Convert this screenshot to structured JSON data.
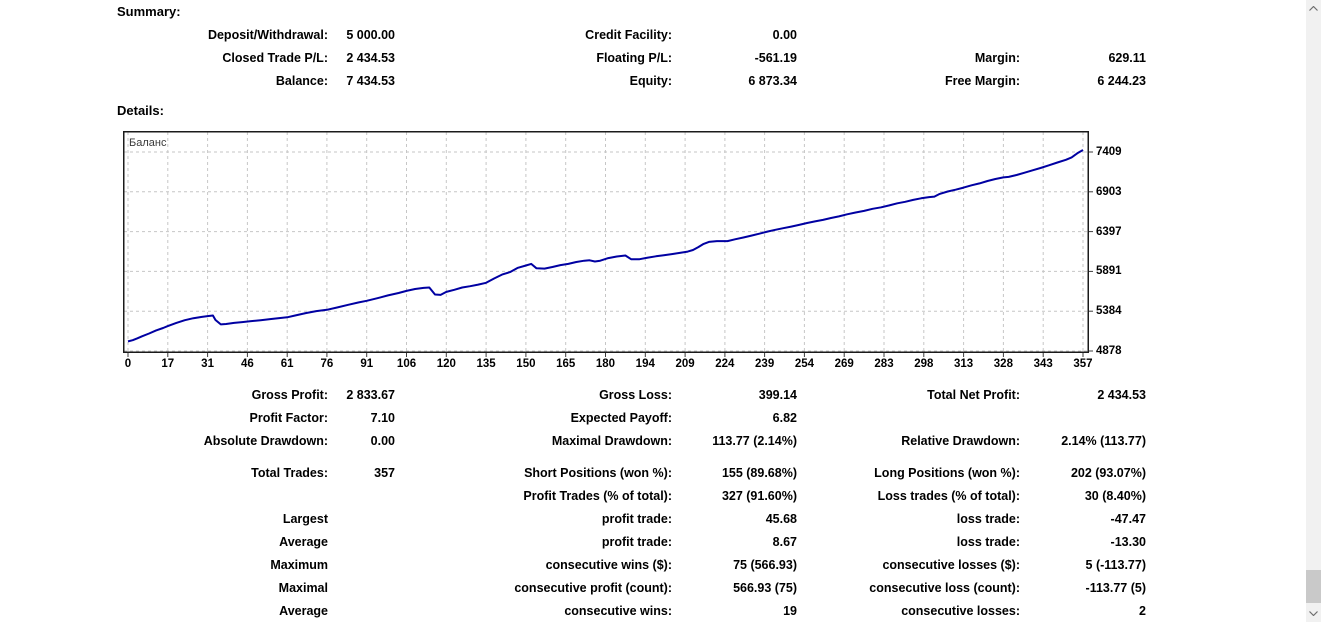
{
  "summary": {
    "heading": "Summary:",
    "rows": [
      [
        "Deposit/Withdrawal:",
        "5 000.00",
        "Credit Facility:",
        "0.00",
        "",
        ""
      ],
      [
        "Closed Trade P/L:",
        "2 434.53",
        "Floating P/L:",
        "-561.19",
        "Margin:",
        "629.11"
      ],
      [
        "Balance:",
        "7 434.53",
        "Equity:",
        "6 873.34",
        "Free Margin:",
        "6 244.23"
      ]
    ]
  },
  "details_heading": "Details:",
  "chart_data": {
    "type": "line",
    "series_label": "Баланс",
    "line_color": "#0000a2",
    "grid": true,
    "x_ticks": [
      0,
      17,
      31,
      46,
      61,
      76,
      91,
      106,
      120,
      135,
      150,
      165,
      180,
      194,
      209,
      224,
      239,
      254,
      269,
      283,
      298,
      313,
      328,
      343,
      357
    ],
    "y_ticks": [
      4878,
      5384,
      5891,
      6397,
      6903,
      7409
    ],
    "x_range": [
      0,
      357
    ],
    "y_range": [
      4840,
      7700
    ],
    "points": [
      [
        0,
        5000
      ],
      [
        2,
        5015
      ],
      [
        4,
        5040
      ],
      [
        6,
        5065
      ],
      [
        9,
        5100
      ],
      [
        12,
        5140
      ],
      [
        15,
        5170
      ],
      [
        17,
        5195
      ],
      [
        20,
        5235
      ],
      [
        23,
        5270
      ],
      [
        26,
        5295
      ],
      [
        29,
        5312
      ],
      [
        31,
        5322
      ],
      [
        33,
        5330
      ],
      [
        34,
        5272
      ],
      [
        36,
        5216
      ],
      [
        38,
        5222
      ],
      [
        41,
        5235
      ],
      [
        44,
        5246
      ],
      [
        47,
        5256
      ],
      [
        51,
        5270
      ],
      [
        55,
        5285
      ],
      [
        58,
        5296
      ],
      [
        61,
        5306
      ],
      [
        64,
        5330
      ],
      [
        68,
        5360
      ],
      [
        72,
        5386
      ],
      [
        76,
        5402
      ],
      [
        80,
        5432
      ],
      [
        84,
        5465
      ],
      [
        88,
        5496
      ],
      [
        91,
        5516
      ],
      [
        95,
        5550
      ],
      [
        99,
        5585
      ],
      [
        103,
        5616
      ],
      [
        106,
        5642
      ],
      [
        109,
        5666
      ],
      [
        112,
        5680
      ],
      [
        114,
        5686
      ],
      [
        116,
        5596
      ],
      [
        118,
        5592
      ],
      [
        120,
        5630
      ],
      [
        123,
        5656
      ],
      [
        126,
        5686
      ],
      [
        129,
        5702
      ],
      [
        132,
        5722
      ],
      [
        135,
        5746
      ],
      [
        138,
        5800
      ],
      [
        141,
        5850
      ],
      [
        144,
        5882
      ],
      [
        147,
        5936
      ],
      [
        150,
        5966
      ],
      [
        152,
        5986
      ],
      [
        154,
        5930
      ],
      [
        157,
        5926
      ],
      [
        160,
        5946
      ],
      [
        163,
        5970
      ],
      [
        166,
        5986
      ],
      [
        169,
        6010
      ],
      [
        172,
        6026
      ],
      [
        174,
        6032
      ],
      [
        176,
        6016
      ],
      [
        178,
        6026
      ],
      [
        181,
        6060
      ],
      [
        184,
        6080
      ],
      [
        187,
        6092
      ],
      [
        189,
        6046
      ],
      [
        192,
        6046
      ],
      [
        195,
        6066
      ],
      [
        198,
        6082
      ],
      [
        201,
        6096
      ],
      [
        204,
        6110
      ],
      [
        207,
        6126
      ],
      [
        210,
        6142
      ],
      [
        212,
        6162
      ],
      [
        214,
        6200
      ],
      [
        216,
        6240
      ],
      [
        218,
        6266
      ],
      [
        221,
        6276
      ],
      [
        225,
        6276
      ],
      [
        228,
        6300
      ],
      [
        231,
        6322
      ],
      [
        234,
        6346
      ],
      [
        237,
        6370
      ],
      [
        240,
        6396
      ],
      [
        243,
        6420
      ],
      [
        246,
        6440
      ],
      [
        249,
        6460
      ],
      [
        252,
        6482
      ],
      [
        255,
        6506
      ],
      [
        258,
        6526
      ],
      [
        261,
        6546
      ],
      [
        264,
        6570
      ],
      [
        267,
        6590
      ],
      [
        270,
        6616
      ],
      [
        273,
        6640
      ],
      [
        276,
        6660
      ],
      [
        279,
        6686
      ],
      [
        282,
        6706
      ],
      [
        285,
        6730
      ],
      [
        288,
        6756
      ],
      [
        291,
        6776
      ],
      [
        294,
        6800
      ],
      [
        297,
        6820
      ],
      [
        300,
        6836
      ],
      [
        302,
        6842
      ],
      [
        304,
        6876
      ],
      [
        307,
        6906
      ],
      [
        310,
        6930
      ],
      [
        313,
        6956
      ],
      [
        316,
        6986
      ],
      [
        319,
        7010
      ],
      [
        322,
        7040
      ],
      [
        325,
        7066
      ],
      [
        328,
        7086
      ],
      [
        330,
        7092
      ],
      [
        333,
        7116
      ],
      [
        336,
        7146
      ],
      [
        339,
        7176
      ],
      [
        342,
        7206
      ],
      [
        345,
        7240
      ],
      [
        348,
        7276
      ],
      [
        351,
        7310
      ],
      [
        353,
        7340
      ],
      [
        355,
        7392
      ],
      [
        357,
        7434
      ]
    ]
  },
  "stats": {
    "group1": [
      [
        "Gross Profit:",
        "2 833.67",
        "Gross Loss:",
        "399.14",
        "Total Net Profit:",
        "2 434.53"
      ],
      [
        "Profit Factor:",
        "7.10",
        "Expected Payoff:",
        "6.82",
        "",
        ""
      ],
      [
        "Absolute Drawdown:",
        "0.00",
        "Maximal Drawdown:",
        "113.77 (2.14%)",
        "Relative Drawdown:",
        "2.14% (113.77)"
      ]
    ],
    "group2": [
      [
        "Total Trades:",
        "357",
        "Short Positions (won %):",
        "155 (89.68%)",
        "Long Positions (won %):",
        "202 (93.07%)"
      ],
      [
        "",
        "",
        "Profit Trades (% of total):",
        "327 (91.60%)",
        "Loss trades (% of total):",
        "30 (8.40%)"
      ],
      [
        "Largest",
        "",
        "profit trade:",
        "45.68",
        "loss trade:",
        "-47.47"
      ],
      [
        "Average",
        "",
        "profit trade:",
        "8.67",
        "loss trade:",
        "-13.30"
      ],
      [
        "Maximum",
        "",
        "consecutive wins ($):",
        "75 (566.93)",
        "consecutive losses ($):",
        "5 (-113.77)"
      ],
      [
        "Maximal",
        "",
        "consecutive profit (count):",
        "566.93 (75)",
        "consecutive loss (count):",
        "-113.77 (5)"
      ],
      [
        "Average",
        "",
        "consecutive wins:",
        "19",
        "consecutive losses:",
        "2"
      ]
    ]
  }
}
